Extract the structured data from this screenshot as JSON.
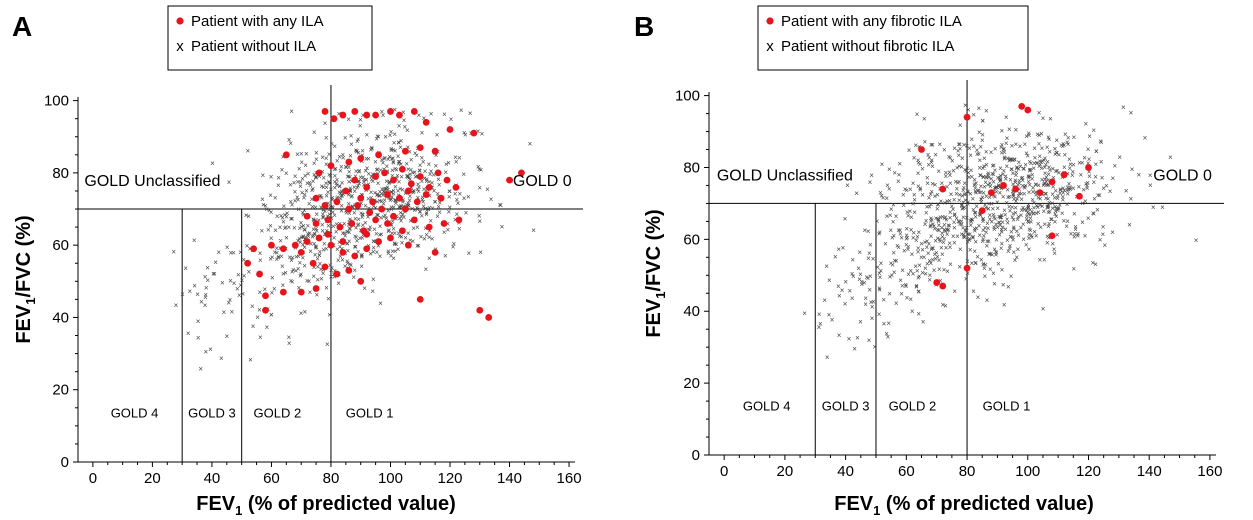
{
  "chart_data": [
    {
      "type": "scatter",
      "panel_label": "A",
      "xlabel": "FEV1 (% of predicted value)",
      "xlabel_parts": [
        "FEV",
        "1",
        " (% of predicted value)"
      ],
      "ylabel": "FEV1/FVC (%)",
      "ylabel_parts": [
        "FEV",
        "1",
        "/FVC (%)"
      ],
      "xlim": [
        -5,
        162
      ],
      "ylim": [
        0,
        101
      ],
      "xticks": [
        0,
        20,
        40,
        60,
        80,
        100,
        120,
        140,
        160
      ],
      "yticks": [
        0,
        20,
        40,
        60,
        80,
        100
      ],
      "legend": {
        "placement": "top-center",
        "entries": [
          {
            "marker": "●",
            "label": "Patient with any ILA",
            "color": "#e8141c"
          },
          {
            "marker": "x",
            "label": "Patient without ILA",
            "color": "#444444"
          }
        ]
      },
      "reference_lines": {
        "horizontal_y": 70,
        "vertical_x": [
          30,
          50,
          80
        ]
      },
      "region_labels": [
        {
          "text": "GOLD Unclassified",
          "x": 20,
          "y": 78,
          "size": "lg"
        },
        {
          "text": "GOLD 0",
          "x": 151,
          "y": 78,
          "size": "lg"
        },
        {
          "text": "GOLD 4",
          "x": 14,
          "y": 14,
          "size": "sm"
        },
        {
          "text": "GOLD 3",
          "x": 40,
          "y": 14,
          "size": "sm"
        },
        {
          "text": "GOLD 2",
          "x": 62,
          "y": 14,
          "size": "sm"
        },
        {
          "text": "GOLD 1",
          "x": 93,
          "y": 14,
          "size": "sm"
        }
      ],
      "series": [
        {
          "name": "Patient with any ILA",
          "marker": "dot",
          "color": "#e8141c",
          "points": [
            [
              78,
              97
            ],
            [
              81,
              95
            ],
            [
              84,
              96
            ],
            [
              88,
              97
            ],
            [
              92,
              96
            ],
            [
              95,
              96
            ],
            [
              100,
              97
            ],
            [
              103,
              96
            ],
            [
              108,
              97
            ],
            [
              112,
              94
            ],
            [
              120,
              92
            ],
            [
              128,
              91
            ],
            [
              65,
              85
            ],
            [
              76,
              80
            ],
            [
              80,
              82
            ],
            [
              86,
              83
            ],
            [
              90,
              84
            ],
            [
              96,
              85
            ],
            [
              105,
              86
            ],
            [
              110,
              87
            ],
            [
              115,
              86
            ],
            [
              88,
              78
            ],
            [
              92,
              76
            ],
            [
              95,
              79
            ],
            [
              98,
              80
            ],
            [
              101,
              78
            ],
            [
              104,
              81
            ],
            [
              107,
              77
            ],
            [
              110,
              79
            ],
            [
              113,
              76
            ],
            [
              116,
              80
            ],
            [
              119,
              78
            ],
            [
              85,
              75
            ],
            [
              90,
              73
            ],
            [
              94,
              72
            ],
            [
              99,
              74
            ],
            [
              103,
              73
            ],
            [
              106,
              75
            ],
            [
              109,
              72
            ],
            [
              112,
              74
            ],
            [
              117,
              73
            ],
            [
              122,
              76
            ],
            [
              140,
              78
            ],
            [
              144,
              80
            ],
            [
              75,
              73
            ],
            [
              78,
              71
            ],
            [
              82,
              72
            ],
            [
              86,
              70
            ],
            [
              89,
              71
            ],
            [
              93,
              69
            ],
            [
              97,
              70
            ],
            [
              101,
              68
            ],
            [
              105,
              70
            ],
            [
              72,
              68
            ],
            [
              75,
              66
            ],
            [
              79,
              67
            ],
            [
              83,
              65
            ],
            [
              87,
              66
            ],
            [
              91,
              64
            ],
            [
              95,
              67
            ],
            [
              99,
              66
            ],
            [
              104,
              64
            ],
            [
              108,
              67
            ],
            [
              113,
              65
            ],
            [
              118,
              66
            ],
            [
              123,
              67
            ],
            [
              68,
              60
            ],
            [
              72,
              61
            ],
            [
              76,
              62
            ],
            [
              80,
              60
            ],
            [
              84,
              58
            ],
            [
              88,
              57
            ],
            [
              92,
              59
            ],
            [
              96,
              61
            ],
            [
              60,
              60
            ],
            [
              64,
              59
            ],
            [
              70,
              58
            ],
            [
              74,
              55
            ],
            [
              78,
              54
            ],
            [
              82,
              52
            ],
            [
              86,
              53
            ],
            [
              54,
              59
            ],
            [
              52,
              55
            ],
            [
              56,
              52
            ],
            [
              58,
              46
            ],
            [
              64,
              47
            ],
            [
              70,
              47
            ],
            [
              75,
              48
            ],
            [
              58,
              42
            ],
            [
              90,
              50
            ],
            [
              110,
              45
            ],
            [
              130,
              42
            ],
            [
              133,
              40
            ],
            [
              79,
              63
            ],
            [
              84,
              61
            ],
            [
              92,
              63
            ],
            [
              100,
              62
            ],
            [
              106,
              60
            ],
            [
              115,
              58
            ]
          ]
        },
        {
          "name": "Patient without ILA",
          "marker": "x",
          "color": "#444444",
          "n": 900,
          "seed": 7
        }
      ]
    },
    {
      "type": "scatter",
      "panel_label": "B",
      "xlabel": "FEV1 (% of predicted value)",
      "xlabel_parts": [
        "FEV",
        "1",
        " (% of predicted value)"
      ],
      "ylabel": "FEV1/FVC (%)",
      "ylabel_parts": [
        "FEV",
        "1",
        "/FVC (%)"
      ],
      "xlim": [
        -5,
        162
      ],
      "ylim": [
        0,
        101
      ],
      "xticks": [
        0,
        20,
        40,
        60,
        80,
        100,
        120,
        140,
        160
      ],
      "yticks": [
        0,
        20,
        40,
        60,
        80,
        100
      ],
      "legend": {
        "placement": "top-center",
        "entries": [
          {
            "marker": "●",
            "label": "Patient with any fibrotic ILA",
            "color": "#e8141c"
          },
          {
            "marker": "x",
            "label": "Patient without fibrotic ILA",
            "color": "#444444"
          }
        ]
      },
      "reference_lines": {
        "horizontal_y": 70,
        "vertical_x": [
          30,
          50,
          80
        ]
      },
      "region_labels": [
        {
          "text": "GOLD Unclassified",
          "x": 20,
          "y": 78,
          "size": "lg"
        },
        {
          "text": "GOLD 0",
          "x": 151,
          "y": 78,
          "size": "lg"
        },
        {
          "text": "GOLD 4",
          "x": 14,
          "y": 14,
          "size": "sm"
        },
        {
          "text": "GOLD 3",
          "x": 40,
          "y": 14,
          "size": "sm"
        },
        {
          "text": "GOLD 2",
          "x": 62,
          "y": 14,
          "size": "sm"
        },
        {
          "text": "GOLD 1",
          "x": 93,
          "y": 14,
          "size": "sm"
        }
      ],
      "series": [
        {
          "name": "Patient with any fibrotic ILA",
          "marker": "dot",
          "color": "#e8141c",
          "points": [
            [
              65,
              85
            ],
            [
              72,
              74
            ],
            [
              80,
              94
            ],
            [
              85,
              68
            ],
            [
              88,
              73
            ],
            [
              92,
              75
            ],
            [
              96,
              74
            ],
            [
              98,
              97
            ],
            [
              100,
              96
            ],
            [
              104,
              73
            ],
            [
              108,
              76
            ],
            [
              108,
              61
            ],
            [
              112,
              78
            ],
            [
              117,
              72
            ],
            [
              120,
              80
            ],
            [
              80,
              52
            ],
            [
              70,
              48
            ],
            [
              72,
              47
            ]
          ]
        },
        {
          "name": "Patient without fibrotic ILA",
          "marker": "x",
          "color": "#444444",
          "n": 1000,
          "seed": 11
        }
      ]
    }
  ]
}
